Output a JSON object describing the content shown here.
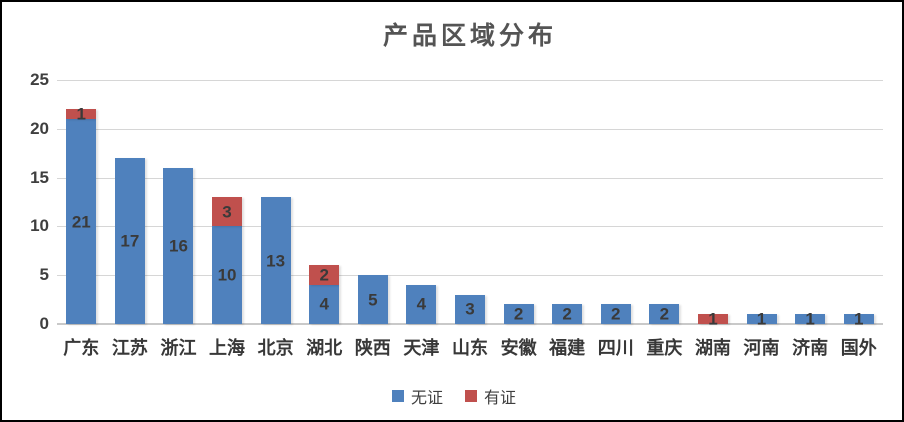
{
  "title": "产品区域分布",
  "colors": {
    "series_blue": "#4F81BD",
    "series_red": "#C0504D",
    "gridline": "#d6d6d6",
    "axis_baseline": "#c9c9c9",
    "title_text": "#545454",
    "label_text": "#3a3a3a"
  },
  "legend": {
    "items": [
      {
        "label": "无证",
        "color": "#4F81BD"
      },
      {
        "label": "有证",
        "color": "#C0504D"
      }
    ]
  },
  "chart_data": {
    "type": "bar",
    "stacked": true,
    "title": "产品区域分布",
    "categories": [
      "广东",
      "江苏",
      "浙江",
      "上海",
      "北京",
      "湖北",
      "陕西",
      "天津",
      "山东",
      "安徽",
      "福建",
      "四川",
      "重庆",
      "湖南",
      "河南",
      "济南",
      "国外"
    ],
    "series": [
      {
        "name": "无证",
        "color": "#4F81BD",
        "values": [
          21,
          17,
          16,
          10,
          13,
          4,
          5,
          4,
          3,
          2,
          2,
          2,
          2,
          0,
          1,
          1,
          1
        ]
      },
      {
        "name": "有证",
        "color": "#C0504D",
        "values": [
          1,
          0,
          0,
          3,
          0,
          2,
          0,
          0,
          0,
          0,
          0,
          0,
          0,
          1,
          0,
          0,
          0
        ]
      }
    ],
    "xlabel": "",
    "ylabel": "",
    "ylim": [
      0,
      25
    ],
    "yticks": [
      0,
      5,
      10,
      15,
      20,
      25
    ],
    "grid": true,
    "legend_position": "bottom",
    "show_value_labels": true
  }
}
